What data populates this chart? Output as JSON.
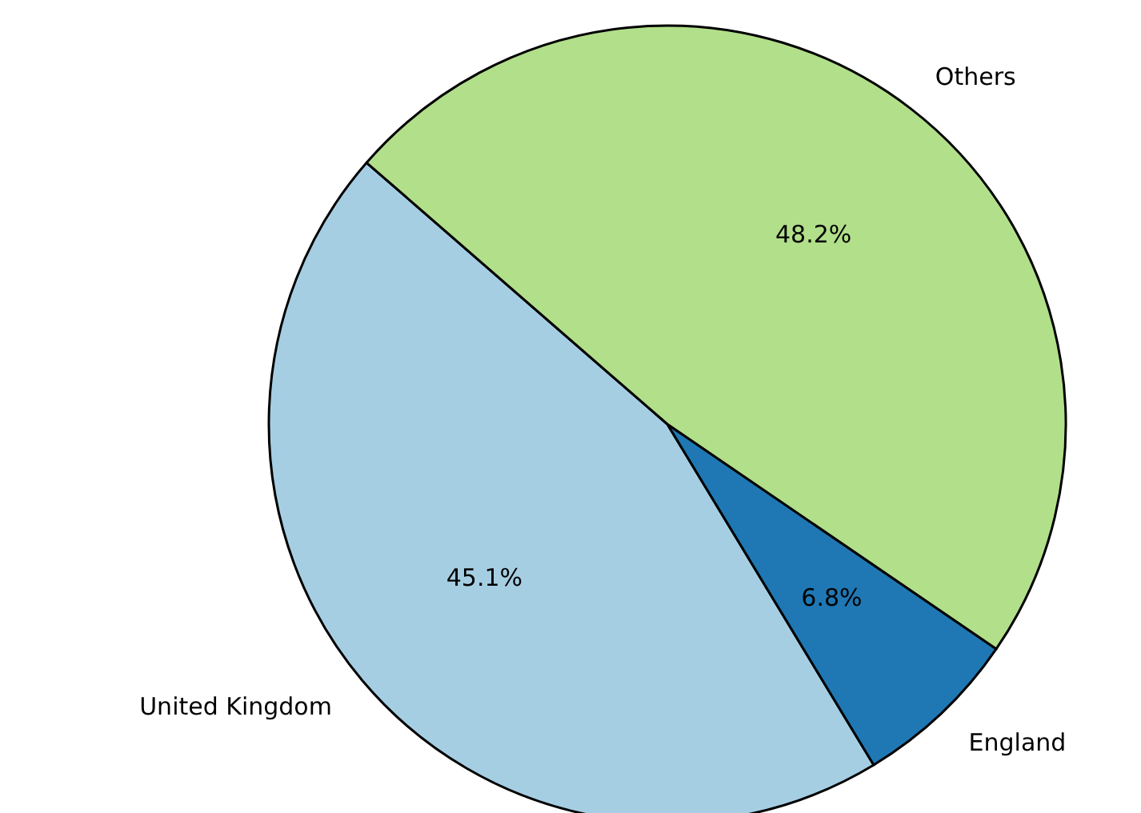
{
  "chart_data": {
    "type": "pie",
    "categories": [
      "United Kingdom",
      "England",
      "Others"
    ],
    "values": [
      45.1,
      6.8,
      48.2
    ],
    "colors": [
      "#a6cee3",
      "#1f78b4",
      "#b2df8a"
    ],
    "value_labels": [
      "45.1%",
      "6.8%",
      "48.2%"
    ]
  }
}
